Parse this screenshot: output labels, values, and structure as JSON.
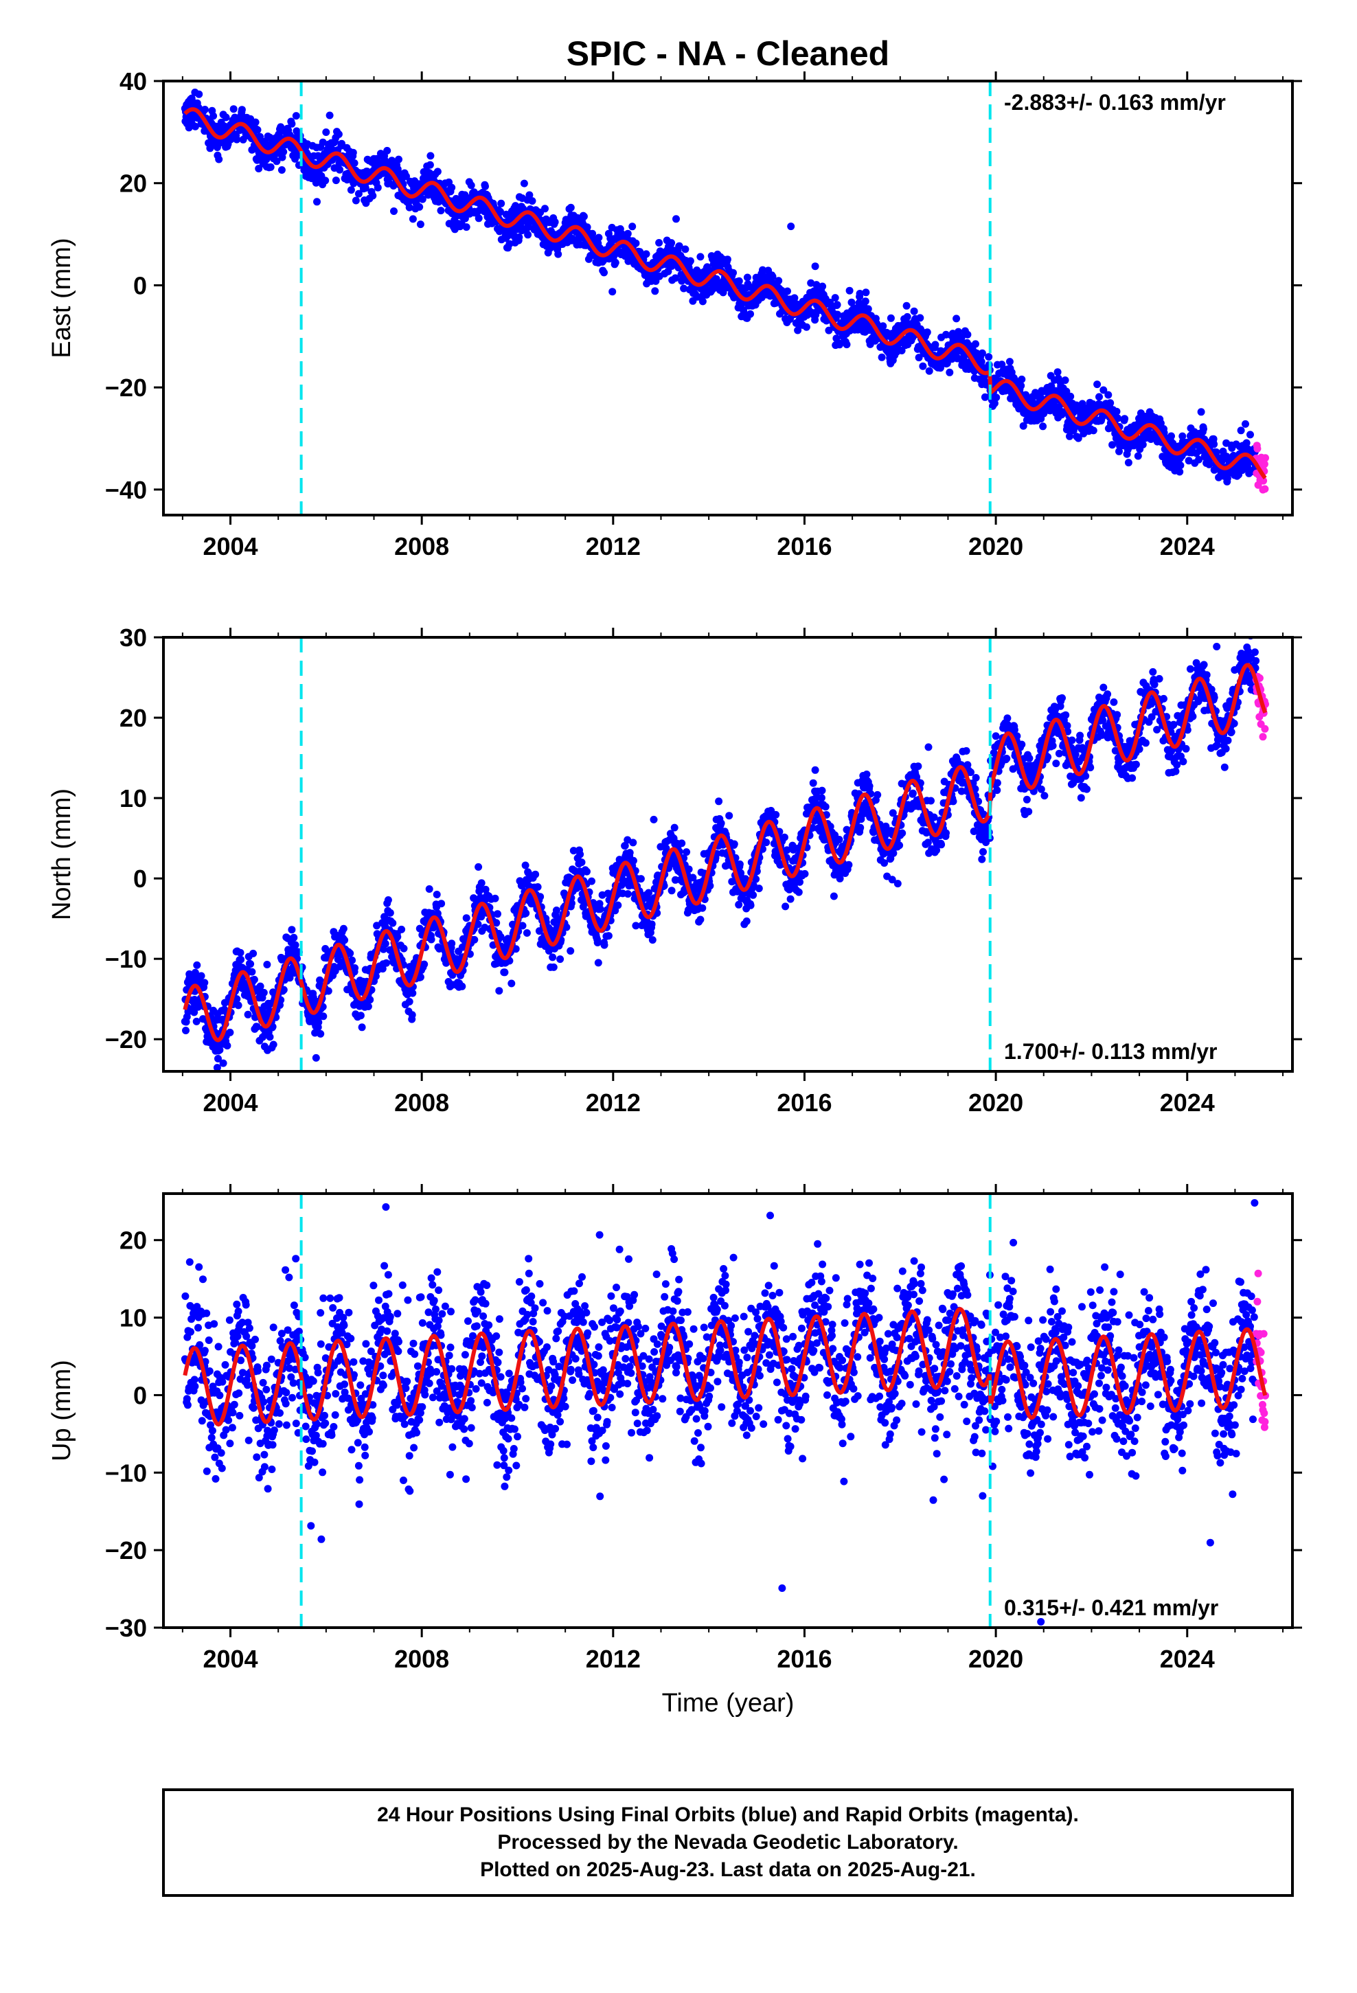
{
  "chart_data": {
    "type": "scatter",
    "title": "SPIC  - NA - Cleaned",
    "xlabel": "Time (year)",
    "xlim": [
      2002.6,
      2026.2
    ],
    "xticks": [
      2004,
      2008,
      2012,
      2016,
      2020,
      2024
    ],
    "x_tick_labels": [
      "2004",
      "2008",
      "2012",
      "2016",
      "2020",
      "2024"
    ],
    "data_span": [
      2003.05,
      2025.64
    ],
    "rapid_span": [
      2025.44,
      2025.64
    ],
    "offset_lines": [
      2005.48,
      2019.88
    ],
    "colors": {
      "final_orbits": "#0000ff",
      "rapid_orbits": "#ff22dd",
      "model_fit": "#ee1111",
      "offset_line": "#00e5ee"
    },
    "panels": [
      {
        "name": "east",
        "ylabel": "East (mm)",
        "ylim": [
          -45,
          40
        ],
        "yticks": [
          40,
          20,
          0,
          -20,
          -40
        ],
        "y_tick_labels": [
          "40",
          "20",
          "0",
          "−20",
          "−40"
        ],
        "rate": "-2.883+/- 0.163 mm/yr",
        "rate_position": "top-right",
        "model": {
          "start_year": 2003.05,
          "start_value": 33,
          "trend": -2.883,
          "annual_amplitude": 2,
          "step_at_2019_88": -4.2
        },
        "scatter_sigma": 1.8
      },
      {
        "name": "north",
        "ylabel": "North (mm)",
        "ylim": [
          -24,
          30
        ],
        "yticks": [
          30,
          20,
          10,
          0,
          -10,
          -20
        ],
        "y_tick_labels": [
          "30",
          "20",
          "10",
          "0",
          "−10",
          "−20"
        ],
        "rate": "1.700+/- 0.113 mm/yr",
        "rate_position": "bottom-right",
        "model": {
          "start_year": 2003.05,
          "start_value": -17.5,
          "trend": 1.7,
          "annual_amplitude": 3.8,
          "step_at_2019_88": 2.5
        },
        "scatter_sigma": 1.7
      },
      {
        "name": "up",
        "ylabel": "Up (mm)",
        "ylim": [
          -30,
          26
        ],
        "yticks": [
          20,
          10,
          0,
          -10,
          -20,
          -30
        ],
        "y_tick_labels": [
          "20",
          "10",
          "0",
          "−10",
          "−20",
          "−30"
        ],
        "rate": "0.315+/- 0.421 mm/yr",
        "rate_position": "bottom-right",
        "model": {
          "start_year": 2003.05,
          "start_value": 1,
          "trend": 0.315,
          "annual_amplitude": 5,
          "step_at_2019_88": -4.5
        },
        "scatter_sigma": 4.2
      }
    ]
  },
  "footer": {
    "lines": [
      "24 Hour Positions Using Final Orbits (blue) and Rapid Orbits (magenta).",
      "Processed by the Nevada Geodetic Laboratory.",
      "Plotted on 2025-Aug-23. Last data on 2025-Aug-21."
    ]
  }
}
